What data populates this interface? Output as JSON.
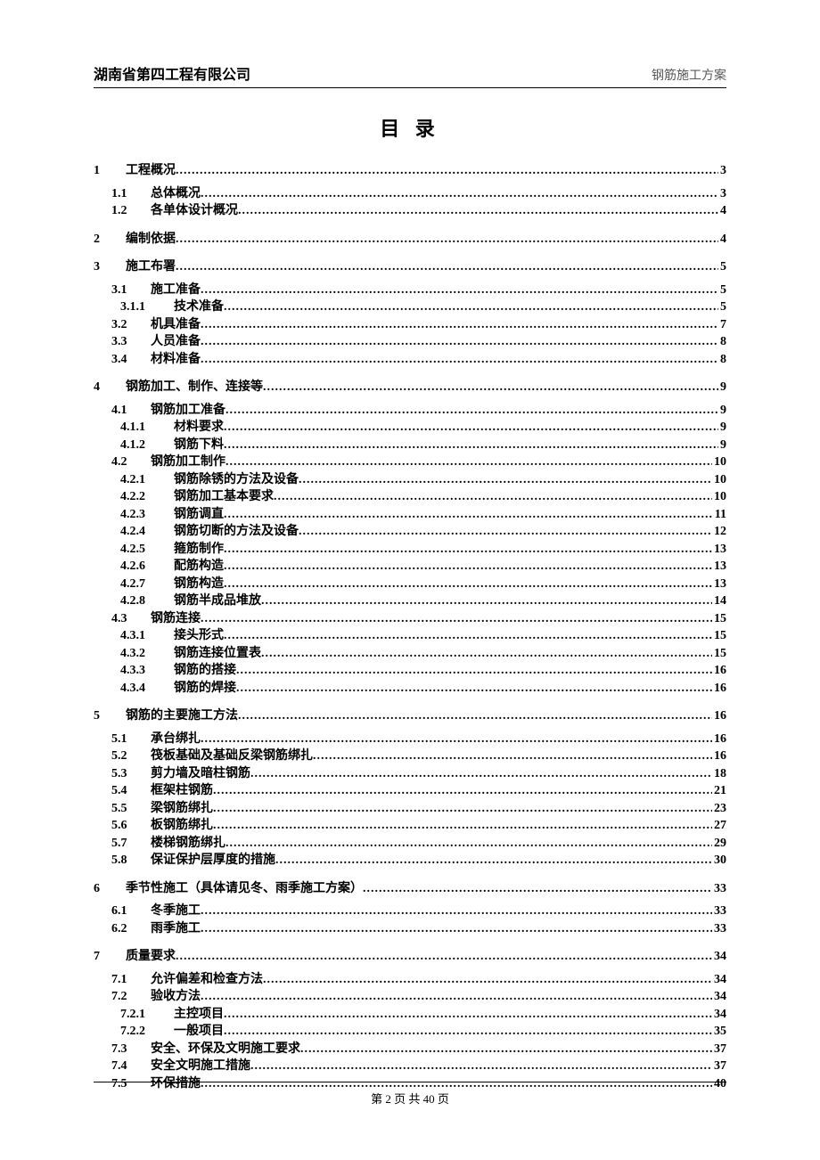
{
  "header": {
    "left": "湖南省第四工程有限公司",
    "right": "钢筋施工方案"
  },
  "toc_title": "目 录",
  "footer": "第 2 页 共 40 页",
  "toc": [
    {
      "level": 1,
      "num": "1",
      "label": "工程概况",
      "page": "3"
    },
    {
      "level": 2,
      "num": "1.1",
      "label": "总体概况",
      "page": "3"
    },
    {
      "level": 2,
      "num": "1.2",
      "label": "各单体设计概况",
      "page": "4"
    },
    {
      "level": 1,
      "num": "2",
      "label": "编制依据",
      "page": "4"
    },
    {
      "level": 1,
      "num": "3",
      "label": "施工布署",
      "page": "5"
    },
    {
      "level": 2,
      "num": "3.1",
      "label": "施工准备",
      "page": "5"
    },
    {
      "level": 3,
      "num": "3.1.1",
      "label": "技术准备",
      "page": "5"
    },
    {
      "level": 2,
      "num": "3.2",
      "label": "机具准备",
      "page": "7"
    },
    {
      "level": 2,
      "num": "3.3",
      "label": "人员准备",
      "page": "8"
    },
    {
      "level": 2,
      "num": "3.4",
      "label": "材料准备",
      "page": "8"
    },
    {
      "level": 1,
      "num": "4",
      "label": "钢筋加工、制作、连接等",
      "page": "9"
    },
    {
      "level": 2,
      "num": "4.1",
      "label": "钢筋加工准备",
      "page": "9"
    },
    {
      "level": 3,
      "num": "4.1.1",
      "label": "材料要求",
      "page": "9"
    },
    {
      "level": 3,
      "num": "4.1.2",
      "label": "钢筋下料",
      "page": "9"
    },
    {
      "level": 2,
      "num": "4.2",
      "label": "钢筋加工制作",
      "page": "10"
    },
    {
      "level": 3,
      "num": "4.2.1",
      "label": "钢筋除锈的方法及设备",
      "page": "10"
    },
    {
      "level": 3,
      "num": "4.2.2",
      "label": "钢筋加工基本要求",
      "page": "10"
    },
    {
      "level": 3,
      "num": "4.2.3",
      "label": "钢筋调直",
      "page": "11"
    },
    {
      "level": 3,
      "num": "4.2.4",
      "label": "钢筋切断的方法及设备",
      "page": "12"
    },
    {
      "level": 3,
      "num": "4.2.5",
      "label": "箍筋制作",
      "page": "13"
    },
    {
      "level": 3,
      "num": "4.2.6",
      "label": "配筋构造",
      "page": "13"
    },
    {
      "level": 3,
      "num": "4.2.7",
      "label": "钢筋构造",
      "page": "13"
    },
    {
      "level": 3,
      "num": "4.2.8",
      "label": "钢筋半成品堆放",
      "page": "14"
    },
    {
      "level": 2,
      "num": "4.3",
      "label": "钢筋连接",
      "page": "15"
    },
    {
      "level": 3,
      "num": "4.3.1",
      "label": "接头形式",
      "page": "15"
    },
    {
      "level": 3,
      "num": "4.3.2",
      "label": "钢筋连接位置表",
      "page": "15"
    },
    {
      "level": 3,
      "num": "4.3.3",
      "label": "钢筋的搭接",
      "page": "16"
    },
    {
      "level": 3,
      "num": "4.3.4",
      "label": "钢筋的焊接",
      "page": "16"
    },
    {
      "level": 1,
      "num": "5",
      "label": "钢筋的主要施工方法",
      "page": "16"
    },
    {
      "level": 2,
      "num": "5.1",
      "label": "承台绑扎",
      "page": "16"
    },
    {
      "level": 2,
      "num": "5.2",
      "label": "筏板基础及基础反梁钢筋绑扎",
      "page": "16"
    },
    {
      "level": 2,
      "num": "5.3",
      "label": "剪力墙及暗柱钢筋",
      "page": "18"
    },
    {
      "level": 2,
      "num": "5.4",
      "label": "框架柱钢筋",
      "page": "21"
    },
    {
      "level": 2,
      "num": "5.5",
      "label": "梁钢筋绑扎",
      "page": "23"
    },
    {
      "level": 2,
      "num": "5.6",
      "label": "板钢筋绑扎",
      "page": "27"
    },
    {
      "level": 2,
      "num": "5.7",
      "label": "楼梯钢筋绑扎",
      "page": "29"
    },
    {
      "level": 2,
      "num": "5.8",
      "label": "保证保护层厚度的措施",
      "page": "30"
    },
    {
      "level": 1,
      "num": "6",
      "label": "季节性施工（具体请见冬、雨季施工方案）",
      "page": "33"
    },
    {
      "level": 2,
      "num": "6.1",
      "label": "冬季施工",
      "page": "33"
    },
    {
      "level": 2,
      "num": "6.2",
      "label": "雨季施工",
      "page": "33"
    },
    {
      "level": 1,
      "num": "7",
      "label": "质量要求",
      "page": "34"
    },
    {
      "level": 2,
      "num": "7.1",
      "label": "允许偏差和检查方法",
      "page": "34"
    },
    {
      "level": 2,
      "num": "7.2",
      "label": "验收方法",
      "page": "34"
    },
    {
      "level": 3,
      "num": "7.2.1",
      "label": "主控项目",
      "page": "34"
    },
    {
      "level": 3,
      "num": "7.2.2",
      "label": "一般项目",
      "page": "35"
    },
    {
      "level": 2,
      "num": "7.3",
      "label": "安全、环保及文明施工要求",
      "page": "37"
    },
    {
      "level": 2,
      "num": "7.4",
      "label": "安全文明施工措施",
      "page": "37"
    },
    {
      "level": 2,
      "num": "7.5",
      "label": "环保措施",
      "page": "40"
    }
  ]
}
